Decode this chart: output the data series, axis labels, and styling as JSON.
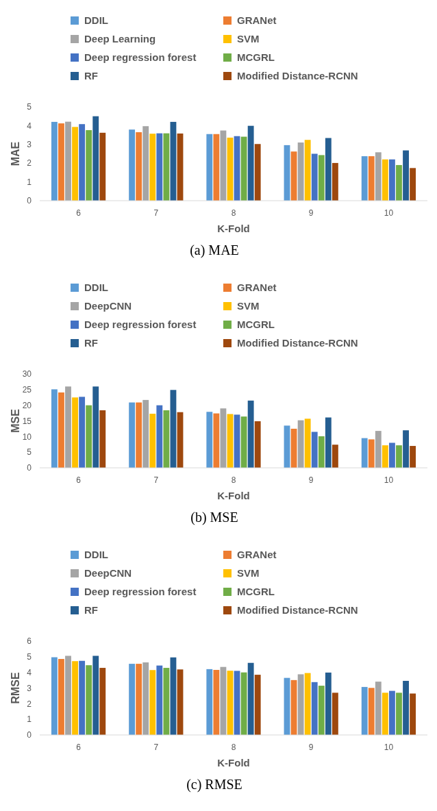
{
  "chart_data": [
    {
      "type": "bar",
      "categories": [
        "6",
        "7",
        "8",
        "9",
        "10"
      ],
      "xlabel": "K-Fold",
      "ylabel": "MAE",
      "ylim": [
        0,
        5
      ],
      "yticks": [
        0,
        1,
        2,
        3,
        4,
        5
      ],
      "legend": "top",
      "annotations": [
        "(a) MAE"
      ],
      "series": [
        {
          "name": "DDIL",
          "color": "#5b9bd5",
          "values": [
            4.2,
            3.79,
            3.55,
            2.96,
            2.37
          ]
        },
        {
          "name": "GRANet",
          "color": "#ed7d31",
          "values": [
            4.12,
            3.65,
            3.55,
            2.62,
            2.37
          ]
        },
        {
          "name": "Deep Learning",
          "color": "#a5a5a5",
          "values": [
            4.21,
            3.97,
            3.74,
            3.1,
            2.58
          ]
        },
        {
          "name": "SVM",
          "color": "#ffc000",
          "values": [
            3.93,
            3.57,
            3.36,
            3.24,
            2.2
          ]
        },
        {
          "name": "Deep regression forest",
          "color": "#4472c4",
          "values": [
            4.08,
            3.59,
            3.44,
            2.5,
            2.2
          ]
        },
        {
          "name": "MCGRL",
          "color": "#70ad47",
          "values": [
            3.76,
            3.59,
            3.41,
            2.43,
            1.9
          ]
        },
        {
          "name": "RF",
          "color": "#255e91",
          "values": [
            4.5,
            4.2,
            3.99,
            3.34,
            2.68
          ]
        },
        {
          "name": "Modified Distance-RCNN",
          "color": "#9e480e",
          "values": [
            3.62,
            3.58,
            3.02,
            2.01,
            1.74
          ]
        }
      ]
    },
    {
      "type": "bar",
      "categories": [
        "6",
        "7",
        "8",
        "9",
        "10"
      ],
      "xlabel": "K-Fold",
      "ylabel": "MSE",
      "ylim": [
        0,
        30
      ],
      "yticks": [
        0,
        5,
        10,
        15,
        20,
        25,
        30
      ],
      "legend": "top",
      "annotations": [
        "(b) MSE"
      ],
      "series": [
        {
          "name": "DDIL",
          "color": "#5b9bd5",
          "values": [
            25.1,
            20.9,
            17.9,
            13.5,
            9.5
          ]
        },
        {
          "name": "GRANet",
          "color": "#ed7d31",
          "values": [
            24.1,
            20.9,
            17.4,
            12.5,
            9.1
          ]
        },
        {
          "name": "DeepCNN",
          "color": "#a5a5a5",
          "values": [
            26.0,
            21.7,
            19.0,
            15.2,
            11.8
          ]
        },
        {
          "name": "SVM",
          "color": "#ffc000",
          "values": [
            22.5,
            17.3,
            17.2,
            15.7,
            7.2
          ]
        },
        {
          "name": "Deep regression forest",
          "color": "#4472c4",
          "values": [
            22.7,
            20.0,
            17.0,
            11.5,
            8.0
          ]
        },
        {
          "name": "MCGRL",
          "color": "#70ad47",
          "values": [
            20.0,
            18.4,
            16.4,
            10.1,
            7.2
          ]
        },
        {
          "name": "RF",
          "color": "#255e91",
          "values": [
            26.0,
            24.9,
            21.5,
            16.1,
            12.0
          ]
        },
        {
          "name": "Modified Distance-RCNN",
          "color": "#9e480e",
          "values": [
            18.4,
            17.8,
            14.9,
            7.4,
            7.0
          ]
        }
      ]
    },
    {
      "type": "bar",
      "categories": [
        "6",
        "7",
        "8",
        "9",
        "10"
      ],
      "xlabel": "K-Fold",
      "ylabel": "RMSE",
      "ylim": [
        0,
        6
      ],
      "yticks": [
        0,
        1,
        2,
        3,
        4,
        5,
        6
      ],
      "legend": "top",
      "annotations": [
        "(c) RMSE"
      ],
      "series": [
        {
          "name": "DDIL",
          "color": "#5b9bd5",
          "values": [
            4.97,
            4.55,
            4.21,
            3.65,
            3.07
          ]
        },
        {
          "name": "GRANet",
          "color": "#ed7d31",
          "values": [
            4.86,
            4.55,
            4.16,
            3.51,
            3.01
          ]
        },
        {
          "name": "DeepCNN",
          "color": "#a5a5a5",
          "values": [
            5.06,
            4.64,
            4.35,
            3.88,
            3.41
          ]
        },
        {
          "name": "SVM",
          "color": "#ffc000",
          "values": [
            4.72,
            4.15,
            4.11,
            3.96,
            2.7
          ]
        },
        {
          "name": "Deep regression forest",
          "color": "#4472c4",
          "values": [
            4.74,
            4.44,
            4.1,
            3.38,
            2.82
          ]
        },
        {
          "name": "MCGRL",
          "color": "#70ad47",
          "values": [
            4.46,
            4.29,
            4.0,
            3.15,
            2.7
          ]
        },
        {
          "name": "RF",
          "color": "#255e91",
          "values": [
            5.06,
            4.96,
            4.61,
            3.99,
            3.46
          ]
        },
        {
          "name": "Modified Distance-RCNN",
          "color": "#9e480e",
          "values": [
            4.29,
            4.19,
            3.85,
            2.7,
            2.65
          ]
        }
      ]
    }
  ]
}
